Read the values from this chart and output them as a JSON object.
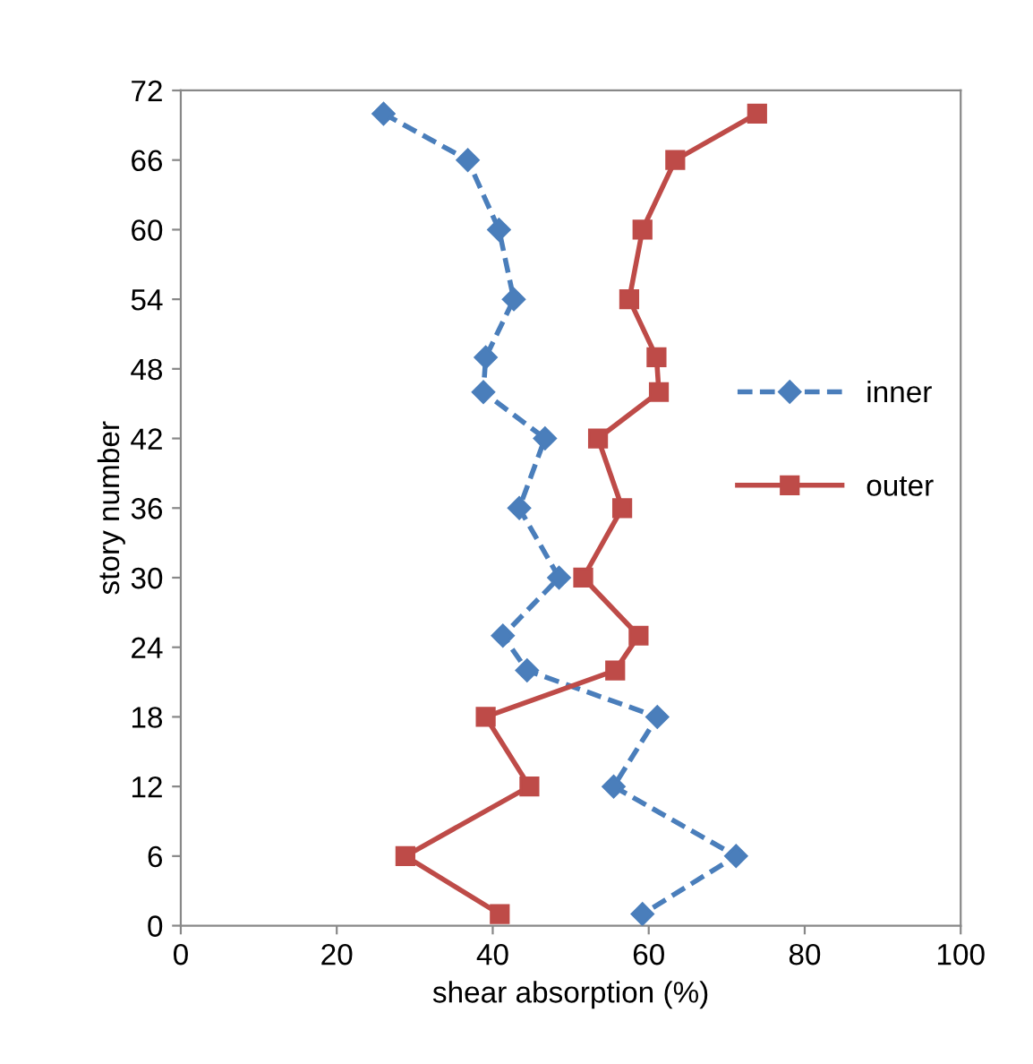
{
  "chart_data": {
    "type": "line",
    "xlabel": "shear absorption (%)",
    "ylabel": "story number",
    "xlim": [
      0,
      100
    ],
    "xticks": [
      0,
      20,
      40,
      60,
      80,
      100
    ],
    "ylim": [
      0,
      72
    ],
    "yticks": [
      0,
      6,
      12,
      18,
      24,
      30,
      36,
      42,
      48,
      54,
      60,
      66,
      72
    ],
    "grid": false,
    "legend": "right",
    "series": [
      {
        "name": "inner",
        "color": "#4a7ebb",
        "marker": "diamond",
        "line_style": "dashed",
        "x": [
          26.0,
          36.8,
          40.8,
          42.7,
          39.1,
          38.8,
          46.7,
          43.4,
          48.5,
          41.3,
          44.4,
          61.1,
          55.5,
          71.2,
          59.2
        ],
        "values": [
          70,
          66,
          60,
          54,
          49,
          46,
          42,
          36,
          30,
          25,
          22,
          18,
          12,
          6,
          1
        ]
      },
      {
        "name": "outer",
        "color": "#be4b48",
        "marker": "square",
        "line_style": "solid",
        "x": [
          73.9,
          63.4,
          59.2,
          57.5,
          61.0,
          61.3,
          53.5,
          56.6,
          51.6,
          58.7,
          55.7,
          39.1,
          44.7,
          28.8,
          40.9
        ],
        "values": [
          70,
          66,
          60,
          54,
          49,
          46,
          42,
          36,
          30,
          25,
          22,
          18,
          12,
          6,
          1
        ]
      }
    ]
  }
}
